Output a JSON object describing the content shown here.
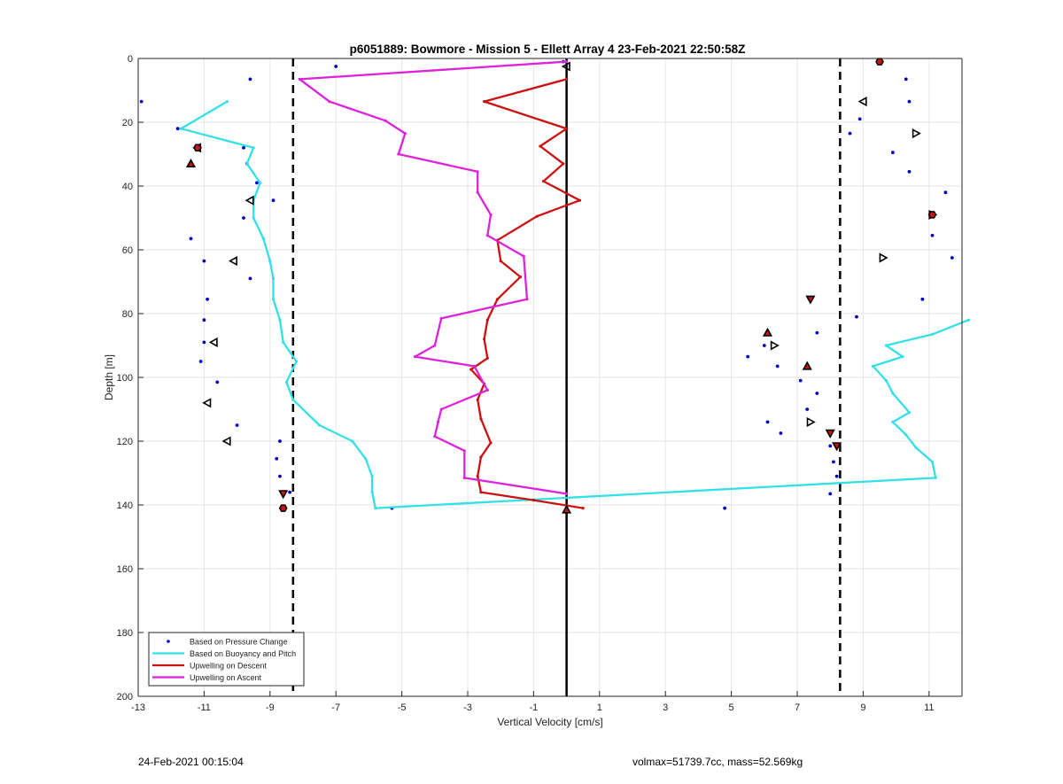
{
  "footer": {
    "timestamp": "24-Feb-2021 00:15:04",
    "volmax_mass": "volmax=51739.7cc, mass=52.569kg"
  },
  "colors": {
    "pressure": "#0000cc",
    "buoyancy": "#33e0e6",
    "descent": "#cc1111",
    "ascent": "#dd22dd",
    "grid": "#e6e6e6"
  },
  "chart_data": {
    "type": "line",
    "title": "p6051889: Bowmore - Mission 5 - Ellett Array 4 23-Feb-2021 22:50:58Z",
    "xlabel": "Vertical Velocity [cm/s]",
    "ylabel": "Depth [m]",
    "xlim": [
      -13,
      12
    ],
    "ylim": [
      0,
      200
    ],
    "y_reversed": true,
    "xticks": [
      -13,
      -11,
      -9,
      -7,
      -5,
      -3,
      -1,
      1,
      3,
      5,
      7,
      9,
      11
    ],
    "yticks": [
      0,
      20,
      40,
      60,
      80,
      100,
      120,
      140,
      160,
      180,
      200
    ],
    "grid": true,
    "legend_position": "bottom-left",
    "reference_lines": {
      "solid_x": 0,
      "dashed_x": [
        -8.3,
        8.3
      ]
    },
    "series": [
      {
        "name": "Based on Pressure Change",
        "kind": "markers",
        "points": [
          [
            -7,
            2.5
          ],
          [
            -9.6,
            6.5
          ],
          [
            -12.9,
            13.5
          ],
          [
            -11.8,
            22
          ],
          [
            -9.8,
            28
          ],
          [
            -9.7,
            33
          ],
          [
            -9.4,
            39
          ],
          [
            -8.9,
            44.5
          ],
          [
            -9.8,
            50
          ],
          [
            -11.4,
            56.5
          ],
          [
            -11,
            63.5
          ],
          [
            -9.6,
            69
          ],
          [
            -10.9,
            75.5
          ],
          [
            -11,
            82
          ],
          [
            -11,
            89
          ],
          [
            -11.1,
            95
          ],
          [
            -10.6,
            101.5
          ],
          [
            -10,
            115
          ],
          [
            -8.7,
            120
          ],
          [
            -8.8,
            125.5
          ],
          [
            -8.7,
            131
          ],
          [
            -8.4,
            136
          ],
          [
            -8.6,
            141
          ],
          [
            -5.3,
            141
          ],
          [
            -0.1,
            1
          ],
          [
            4.8,
            141
          ],
          [
            9.5,
            1
          ],
          [
            10.3,
            6.5
          ],
          [
            10.4,
            13.5
          ],
          [
            8.9,
            19
          ],
          [
            8.6,
            23.5
          ],
          [
            9.9,
            29.5
          ],
          [
            10.4,
            35.5
          ],
          [
            11.5,
            42
          ],
          [
            11.1,
            49
          ],
          [
            11.1,
            55.5
          ],
          [
            11.7,
            62.5
          ],
          [
            10.8,
            75.5
          ],
          [
            8.8,
            81
          ],
          [
            7.6,
            86
          ],
          [
            6,
            90
          ],
          [
            5.5,
            93.5
          ],
          [
            6.4,
            96.5
          ],
          [
            7.1,
            101
          ],
          [
            7.6,
            105
          ],
          [
            7.3,
            110
          ],
          [
            6.1,
            114
          ],
          [
            6.5,
            117.5
          ],
          [
            8,
            121.5
          ],
          [
            8.1,
            126.5
          ],
          [
            8.2,
            131
          ],
          [
            8,
            136.5
          ]
        ]
      },
      {
        "name": "Based on Buoyancy and Pitch",
        "kind": "line",
        "points": [
          [
            -10.3,
            13.5
          ],
          [
            -11.7,
            22
          ],
          [
            -9.5,
            28
          ],
          [
            -9.7,
            33
          ],
          [
            -9.3,
            39
          ],
          [
            -9.5,
            44.5
          ],
          [
            -9.5,
            50
          ],
          [
            -9.2,
            56.5
          ],
          [
            -9,
            63.5
          ],
          [
            -8.9,
            69
          ],
          [
            -8.9,
            75.5
          ],
          [
            -8.7,
            82
          ],
          [
            -8.6,
            89
          ],
          [
            -8.2,
            95
          ],
          [
            -8.5,
            101.5
          ],
          [
            -8.3,
            107
          ],
          [
            -7.5,
            115
          ],
          [
            -6.5,
            120
          ],
          [
            -6.1,
            125.5
          ],
          [
            -5.9,
            131
          ],
          [
            -5.9,
            136
          ],
          [
            -5.8,
            141
          ],
          [
            11.2,
            131.5
          ],
          [
            11.1,
            126.5
          ],
          [
            10.6,
            122
          ],
          [
            10.3,
            118
          ],
          [
            9.9,
            114
          ],
          [
            10.4,
            111
          ],
          [
            9.9,
            105
          ],
          [
            9.7,
            101
          ],
          [
            9.3,
            96.5
          ],
          [
            10.2,
            93.5
          ],
          [
            9.7,
            90
          ],
          [
            11.1,
            86.5
          ],
          [
            12.2,
            82
          ]
        ]
      },
      {
        "name": "Upwelling on Descent",
        "kind": "line",
        "points": [
          [
            0,
            6.5
          ],
          [
            -2.5,
            13.5
          ],
          [
            0,
            22
          ],
          [
            -0.8,
            27.5
          ],
          [
            -0.1,
            33
          ],
          [
            -0.7,
            38.5
          ],
          [
            0.4,
            44.5
          ],
          [
            -0.9,
            49.5
          ],
          [
            -2.1,
            57
          ],
          [
            -2,
            63.5
          ],
          [
            -1.4,
            68.5
          ],
          [
            -2.1,
            75.5
          ],
          [
            -2.4,
            82
          ],
          [
            -2.5,
            88
          ],
          [
            -2.4,
            94
          ],
          [
            -2.9,
            97.5
          ],
          [
            -2.5,
            102
          ],
          [
            -2.7,
            107
          ],
          [
            -2.6,
            113
          ],
          [
            -2.3,
            120.5
          ],
          [
            -2.6,
            125
          ],
          [
            -2.7,
            131
          ],
          [
            -2.6,
            136
          ],
          [
            -1,
            138.5
          ],
          [
            0.5,
            141
          ]
        ]
      },
      {
        "name": "Upwelling on Ascent",
        "kind": "line",
        "points": [
          [
            0,
            1
          ],
          [
            -8.1,
            6.5
          ],
          [
            -7.2,
            13.5
          ],
          [
            -5.5,
            19.5
          ],
          [
            -4.9,
            23.5
          ],
          [
            -5.1,
            30
          ],
          [
            -2.7,
            35.5
          ],
          [
            -2.7,
            42
          ],
          [
            -2.3,
            49
          ],
          [
            -2.4,
            55.5
          ],
          [
            -1.3,
            62
          ],
          [
            -1.2,
            75.5
          ],
          [
            -3.8,
            81.5
          ],
          [
            -4,
            90
          ],
          [
            -4.6,
            93.5
          ],
          [
            -2.8,
            96.5
          ],
          [
            -2.4,
            104
          ],
          [
            -3.8,
            110
          ],
          [
            -3.9,
            114
          ],
          [
            -4,
            118.5
          ],
          [
            -3.1,
            123
          ],
          [
            -3.1,
            131.5
          ],
          [
            0,
            136.5
          ]
        ]
      },
      {
        "name": "Descent markers",
        "kind": "triangle-down",
        "points": [
          [
            -8.6,
            136.5
          ],
          [
            7.4,
            75.5
          ],
          [
            8,
            117.5
          ],
          [
            8.2,
            121.5
          ]
        ]
      },
      {
        "name": "Ascent markers",
        "kind": "triangle-up",
        "points": [
          [
            -11.4,
            33
          ],
          [
            0,
            141.5
          ],
          [
            6.1,
            86
          ],
          [
            7.3,
            96.5
          ]
        ]
      },
      {
        "name": "Left-pointing markers",
        "kind": "triangle-left",
        "points": [
          [
            -11.2,
            28
          ],
          [
            -9.6,
            44.5
          ],
          [
            -10.1,
            63.5
          ],
          [
            -10.7,
            89
          ],
          [
            -10.9,
            108
          ],
          [
            -10.3,
            120
          ],
          [
            9,
            13.5
          ],
          [
            0,
            2.5
          ]
        ]
      },
      {
        "name": "Right-pointing markers",
        "kind": "triangle-right",
        "points": [
          [
            10.6,
            23.5
          ],
          [
            11.1,
            49
          ],
          [
            9.6,
            62.5
          ],
          [
            6.3,
            90
          ],
          [
            7.4,
            114
          ]
        ]
      },
      {
        "name": "Hexagon markers",
        "kind": "hexagon",
        "points": [
          [
            9.5,
            1
          ],
          [
            -11.2,
            28
          ],
          [
            11.1,
            49
          ],
          [
            -8.6,
            141
          ]
        ]
      }
    ],
    "legend": [
      "Based on Pressure Change",
      "Based on Buoyancy and Pitch",
      "Upwelling on Descent",
      "Upwelling on Ascent"
    ]
  }
}
